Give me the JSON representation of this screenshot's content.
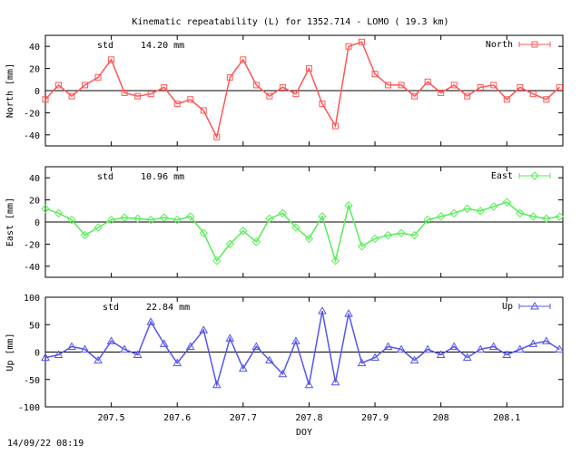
{
  "chart_data": [
    {
      "type": "line",
      "panel": "north",
      "title": "Kinematic repeatability (L) for 1352.714 - LOMO  ( 19.3 km)",
      "ylabel": "North [mm]",
      "xlabel": "",
      "ylim": [
        -50,
        50
      ],
      "yticks": [
        -40,
        -20,
        0,
        20,
        40
      ],
      "xlim": [
        207.4,
        208.185
      ],
      "std_label": "std",
      "std_value": "14.20 mm",
      "legend": "North",
      "legend_position": "top-right",
      "color": "#ff5555",
      "marker": "square",
      "series": [
        {
          "name": "North",
          "x": [
            207.4,
            207.42,
            207.44,
            207.46,
            207.48,
            207.5,
            207.52,
            207.54,
            207.56,
            207.58,
            207.6,
            207.62,
            207.64,
            207.66,
            207.68,
            207.7,
            207.72,
            207.74,
            207.76,
            207.78,
            207.8,
            207.82,
            207.84,
            207.86,
            207.88,
            207.9,
            207.92,
            207.94,
            207.96,
            207.98,
            208,
            208.02,
            208.04,
            208.06,
            208.08,
            208.1,
            208.12,
            208.14,
            208.16,
            208.18
          ],
          "values": [
            -8,
            5,
            -5,
            5,
            12,
            28,
            -2,
            -5,
            -3,
            3,
            -12,
            -8,
            -18,
            -42,
            12,
            28,
            5,
            -5,
            3,
            -3,
            20,
            -12,
            -32,
            40,
            44,
            15,
            5,
            5,
            -5,
            8,
            -2,
            5,
            -5,
            3,
            5,
            -8,
            3,
            -3,
            -8,
            3
          ]
        }
      ]
    },
    {
      "type": "line",
      "panel": "east",
      "ylabel": "East [mm]",
      "xlabel": "",
      "ylim": [
        -50,
        50
      ],
      "yticks": [
        -40,
        -20,
        0,
        20,
        40
      ],
      "xlim": [
        207.4,
        208.185
      ],
      "std_label": "std",
      "std_value": "10.96 mm",
      "legend": "East",
      "legend_position": "top-right",
      "color": "#55ee55",
      "marker": "diamond",
      "series": [
        {
          "name": "East",
          "x": [
            207.4,
            207.42,
            207.44,
            207.46,
            207.48,
            207.5,
            207.52,
            207.54,
            207.56,
            207.58,
            207.6,
            207.62,
            207.64,
            207.66,
            207.68,
            207.7,
            207.72,
            207.74,
            207.76,
            207.78,
            207.8,
            207.82,
            207.84,
            207.86,
            207.88,
            207.9,
            207.92,
            207.94,
            207.96,
            207.98,
            208,
            208.02,
            208.04,
            208.06,
            208.08,
            208.1,
            208.12,
            208.14,
            208.16,
            208.18
          ],
          "values": [
            12,
            8,
            2,
            -12,
            -5,
            2,
            4,
            3,
            2,
            4,
            2,
            5,
            -10,
            -35,
            -20,
            -8,
            -18,
            3,
            8,
            -5,
            -15,
            5,
            -35,
            15,
            -22,
            -15,
            -12,
            -10,
            -12,
            2,
            5,
            8,
            12,
            10,
            14,
            18,
            8,
            5,
            3,
            5
          ]
        }
      ]
    },
    {
      "type": "line",
      "panel": "up",
      "ylabel": "Up [mm]",
      "xlabel": "DOY",
      "ylim": [
        -100,
        100
      ],
      "yticks": [
        -100,
        -50,
        0,
        50,
        100
      ],
      "xlim": [
        207.4,
        208.185
      ],
      "xticks": [
        207.5,
        207.6,
        207.7,
        207.8,
        207.9,
        208,
        208.1
      ],
      "std_label": "std",
      "std_value": "22.84 mm",
      "legend": "Up",
      "legend_position": "top-right",
      "color": "#5555ee",
      "marker": "triangle",
      "series": [
        {
          "name": "Up",
          "x": [
            207.4,
            207.42,
            207.44,
            207.46,
            207.48,
            207.5,
            207.52,
            207.54,
            207.56,
            207.58,
            207.6,
            207.62,
            207.64,
            207.66,
            207.68,
            207.7,
            207.72,
            207.74,
            207.76,
            207.78,
            207.8,
            207.82,
            207.84,
            207.86,
            207.88,
            207.9,
            207.92,
            207.94,
            207.96,
            207.98,
            208,
            208.02,
            208.04,
            208.06,
            208.08,
            208.1,
            208.12,
            208.14,
            208.16,
            208.18
          ],
          "values": [
            -10,
            -5,
            10,
            5,
            -15,
            20,
            5,
            -5,
            55,
            15,
            -20,
            10,
            40,
            -60,
            25,
            -30,
            10,
            -15,
            -40,
            20,
            -60,
            75,
            -55,
            70,
            -20,
            -10,
            10,
            5,
            -15,
            5,
            -5,
            10,
            -10,
            5,
            10,
            -5,
            5,
            15,
            20,
            5
          ]
        }
      ]
    }
  ],
  "footer": {
    "timestamp": "14/09/22 08:19"
  }
}
